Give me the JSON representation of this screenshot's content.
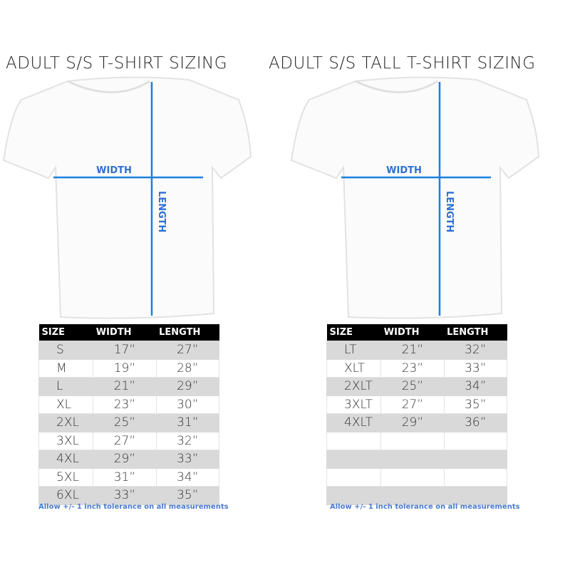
{
  "colors": {
    "accent": "#1a7fe0",
    "label": "#2f6fd0",
    "header_bg": "#000000",
    "stripe": "#d9d9d9"
  },
  "charts": [
    {
      "title": "ADULT S/S T-SHIRT SIZING",
      "width_label": "WIDTH",
      "length_label": "LENGTH",
      "headers": [
        "SIZE",
        "WIDTH",
        "LENGTH"
      ],
      "rows": [
        [
          "S",
          "17”",
          "27”"
        ],
        [
          "M",
          "19”",
          "28”"
        ],
        [
          "L",
          "21”",
          "29”"
        ],
        [
          "XL",
          "23”",
          "30”"
        ],
        [
          "2XL",
          "25”",
          "31”"
        ],
        [
          "3XL",
          "27”",
          "32”"
        ],
        [
          "4XL",
          "29”",
          "33”"
        ],
        [
          "5XL",
          "31”",
          "34”"
        ],
        [
          "6XL",
          "33”",
          "35”"
        ]
      ],
      "note": "Allow +/- 1 inch tolerance on all measurements"
    },
    {
      "title": "ADULT S/S TALL T-SHIRT SIZING",
      "width_label": "WIDTH",
      "length_label": "LENGTH",
      "headers": [
        "SIZE",
        "WIDTH",
        "LENGTH"
      ],
      "rows": [
        [
          "LT",
          "21”",
          "32”"
        ],
        [
          "XLT",
          "23”",
          "33”"
        ],
        [
          "2XLT",
          "25”",
          "34”"
        ],
        [
          "3XLT",
          "27”",
          "35”"
        ],
        [
          "4XLT",
          "29”",
          "36”"
        ],
        [
          "",
          "",
          ""
        ],
        [
          "",
          "",
          ""
        ],
        [
          "",
          "",
          ""
        ],
        [
          "",
          "",
          ""
        ]
      ],
      "note": "Allow +/- 1 inch tolerance on all measurements"
    }
  ]
}
